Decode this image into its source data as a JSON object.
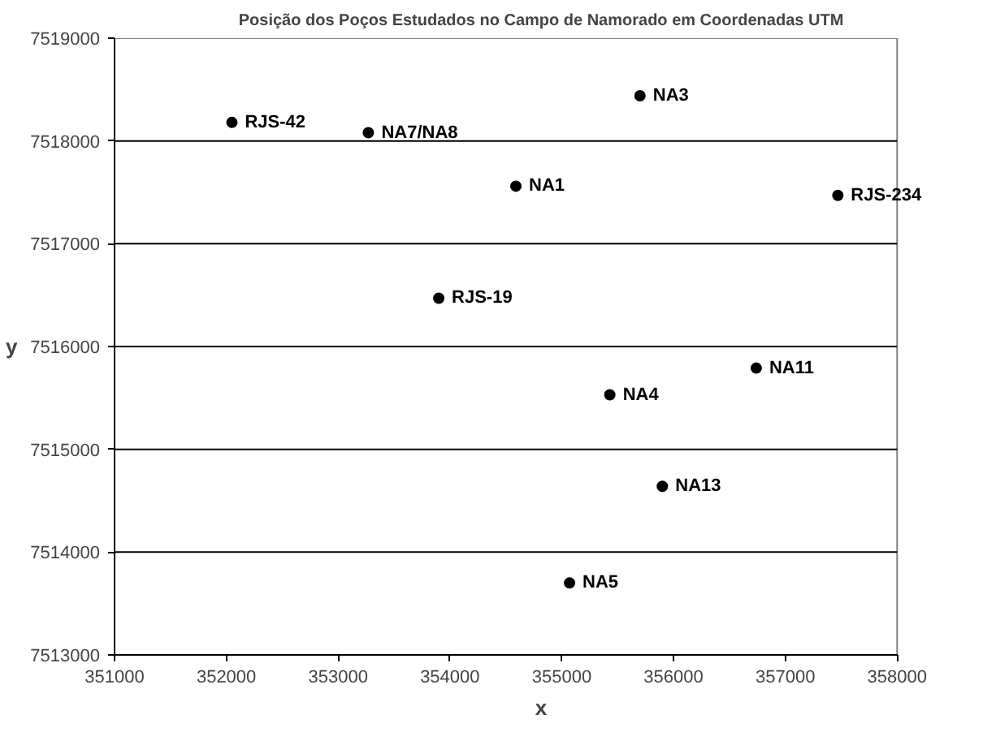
{
  "chart_data": {
    "type": "scatter",
    "title": "Posição dos Poços Estudados no Campo de Namorado em Coordenadas UTM",
    "xlabel": "x",
    "ylabel": "y",
    "series": [
      {
        "color": "#000000",
        "x": [
          352050,
          353270,
          353900,
          355700,
          354590,
          357470,
          356740,
          355430,
          355900,
          355070
        ],
        "values": [
          7518180,
          7518080,
          7516470,
          7518440,
          7517560,
          7517470,
          7515790,
          7515530,
          7514640,
          7513700
        ]
      }
    ],
    "annotations": [
      {
        "text": "RJS-42",
        "x": 352050,
        "y": 7518180
      },
      {
        "text": "NA7/NA8",
        "x": 353270,
        "y": 7518080
      },
      {
        "text": "RJS-19",
        "x": 353900,
        "y": 7516470
      },
      {
        "text": "NA3",
        "x": 355700,
        "y": 7518440
      },
      {
        "text": "NA1",
        "x": 354590,
        "y": 7517560
      },
      {
        "text": "RJS-234",
        "x": 357470,
        "y": 7517470
      },
      {
        "text": "NA11",
        "x": 356740,
        "y": 7515790
      },
      {
        "text": "NA4",
        "x": 355430,
        "y": 7515530
      },
      {
        "text": "NA13",
        "x": 355900,
        "y": 7514640
      },
      {
        "text": "NA5",
        "x": 355070,
        "y": 7513700
      }
    ],
    "xlim": [
      351000,
      358000
    ],
    "ylim": [
      7513000,
      7519000
    ],
    "xticks": [
      351000,
      352000,
      353000,
      354000,
      355000,
      356000,
      357000,
      358000
    ],
    "yticks": [
      7513000,
      7514000,
      7515000,
      7516000,
      7517000,
      7518000,
      7519000
    ],
    "grid": "y",
    "marker": "circle"
  }
}
